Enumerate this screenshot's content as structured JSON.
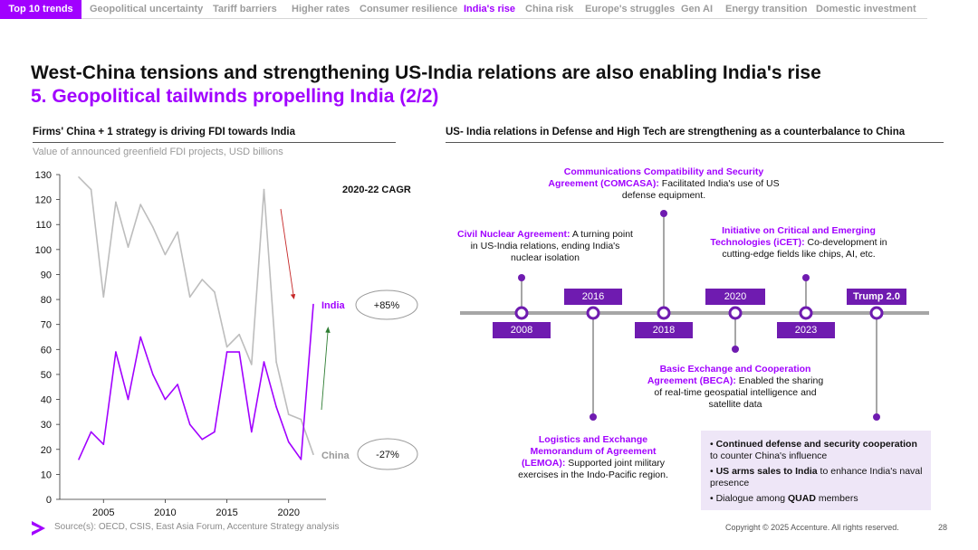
{
  "nav": {
    "active": "Top 10 trends",
    "items": [
      "Geopolitical uncertainty",
      "Tariff barriers",
      "Higher rates",
      "Consumer resilience",
      "India's rise",
      "China risk",
      "Europe's struggles",
      "Gen AI",
      "Energy transition",
      "Domestic investment"
    ],
    "current_index": 4
  },
  "title": {
    "line1": "West-China tensions and strengthening US-India relations are also enabling India's rise",
    "line2": "5. Geopolitical tailwinds propelling India (2/2)"
  },
  "left": {
    "subtitle": "Firms' China + 1 strategy is driving FDI towards India",
    "unit": "Value of announced greenfield FDI projects, USD billions",
    "cagr_title": "2020-22 CAGR",
    "india_label": "India",
    "india_cagr": "+85%",
    "china_label": "China",
    "china_cagr": "-27%"
  },
  "chart_data": {
    "type": "line",
    "title": "Value of announced greenfield FDI projects, USD billions",
    "xlabel": "",
    "ylabel": "",
    "xlim": [
      2003,
      2022
    ],
    "ylim": [
      0,
      130
    ],
    "xticks": [
      2005,
      2010,
      2015,
      2020
    ],
    "yticks": [
      0,
      10,
      20,
      30,
      40,
      50,
      60,
      70,
      80,
      90,
      100,
      110,
      120,
      130
    ],
    "x": [
      2003,
      2004,
      2005,
      2006,
      2007,
      2008,
      2009,
      2010,
      2011,
      2012,
      2013,
      2014,
      2015,
      2016,
      2017,
      2018,
      2019,
      2020,
      2021,
      2022
    ],
    "series": [
      {
        "name": "China",
        "color": "#bdbdbd",
        "values": [
          129,
          124,
          81,
          119,
          101,
          118,
          109,
          98,
          107,
          81,
          88,
          83,
          61,
          66,
          54,
          124,
          55,
          34,
          32,
          18
        ]
      },
      {
        "name": "India",
        "color": "#a100ff",
        "values": [
          16,
          27,
          22,
          59,
          40,
          65,
          50,
          40,
          46,
          30,
          24,
          27,
          59,
          59,
          27,
          55,
          37,
          23,
          16,
          78
        ]
      }
    ],
    "annotations": [
      {
        "text": "2020-22 CAGR"
      },
      {
        "series": "India",
        "text": "+85%"
      },
      {
        "series": "China",
        "text": "-27%"
      }
    ]
  },
  "right": {
    "subtitle": "US- India relations in Defense and High Tech are strengthening as a counterbalance to China",
    "years": [
      "2008",
      "2016",
      "2018",
      "2020",
      "2023",
      "Trump 2.0"
    ],
    "events": {
      "civil": {
        "head": "Civil Nuclear Agreement:",
        "body": " A turning point in US-India relations, ending India's nuclear isolation"
      },
      "comcasa": {
        "head": "Communications Compatibility and Security Agreement (COMCASA):",
        "body": " Facilitated India's use of US defense equipment."
      },
      "icet": {
        "head": "Initiative on Critical and Emerging Technologies (iCET):",
        "body": "  Co-development in cutting-edge fields like chips, AI, etc."
      },
      "beca": {
        "head": "Basic Exchange and Cooperation Agreement (BECA):",
        "body": " Enabled the sharing of real-time geospatial intelligence and satellite data"
      },
      "lemoa": {
        "head": "Logistics and Exchange Memorandum of Agreement (LEMOA):",
        "body": " Supported joint military exercises in the Indo-Pacific region."
      }
    },
    "bullets": [
      {
        "bold": "Continued defense and security cooperation",
        "rest": " to counter China's influence"
      },
      {
        "bold": "US arms sales to India",
        "rest": " to enhance India's naval presence"
      },
      {
        "pre": "Dialogue among ",
        "bold": "QUAD",
        "rest": " members"
      }
    ]
  },
  "footer": {
    "source": "Source(s): OECD, CSIS, East Asia Forum, Accenture Strategy analysis",
    "copyright": "Copyright © 2025 Accenture. All rights reserved.",
    "page": "28"
  },
  "colors": {
    "accent": "#a100ff",
    "dark_purple": "#6f1bb0",
    "china_gray": "#bdbdbd"
  }
}
